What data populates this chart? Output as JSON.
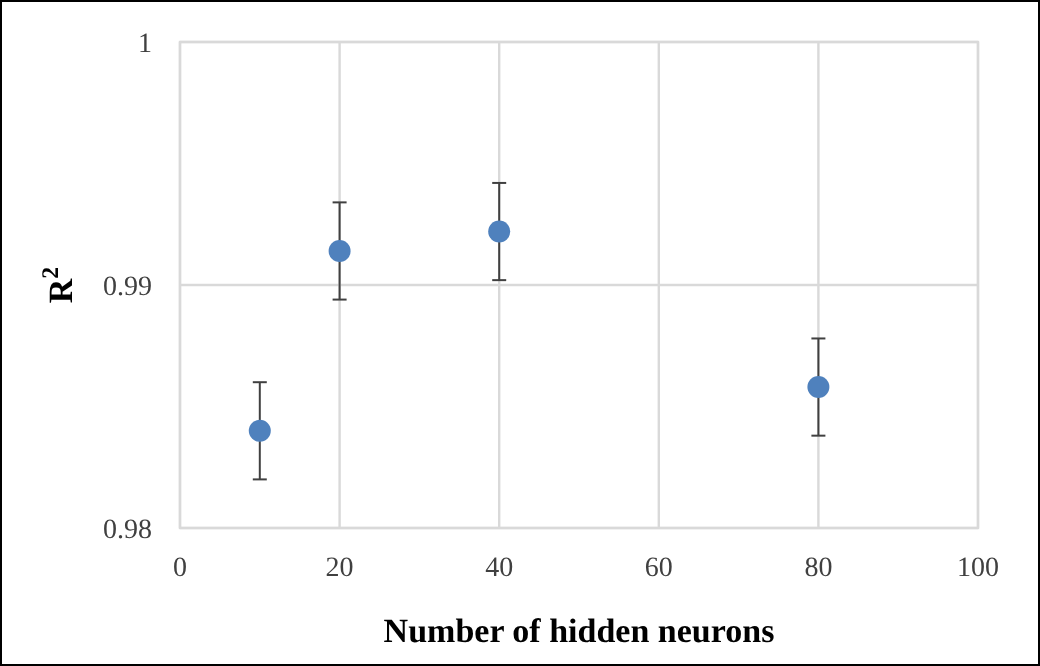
{
  "chart_data": {
    "type": "scatter",
    "xlabel": "Number of hidden neurons",
    "ylabel": "R$^{2}$",
    "x": [
      10,
      20,
      40,
      80
    ],
    "series": [
      {
        "color": "#4f81bd",
        "values": [
          0.984,
          0.9914,
          0.9922,
          0.9858
        ],
        "errors": [
          0.002,
          0.002,
          0.002,
          0.002
        ]
      }
    ],
    "xlim": [
      0,
      100
    ],
    "xticks": [
      0,
      20,
      40,
      60,
      80,
      100
    ],
    "ylim": [
      0.98,
      1
    ],
    "yticks": [
      0.98,
      0.99,
      1
    ],
    "grid": true,
    "marker": "circle"
  }
}
